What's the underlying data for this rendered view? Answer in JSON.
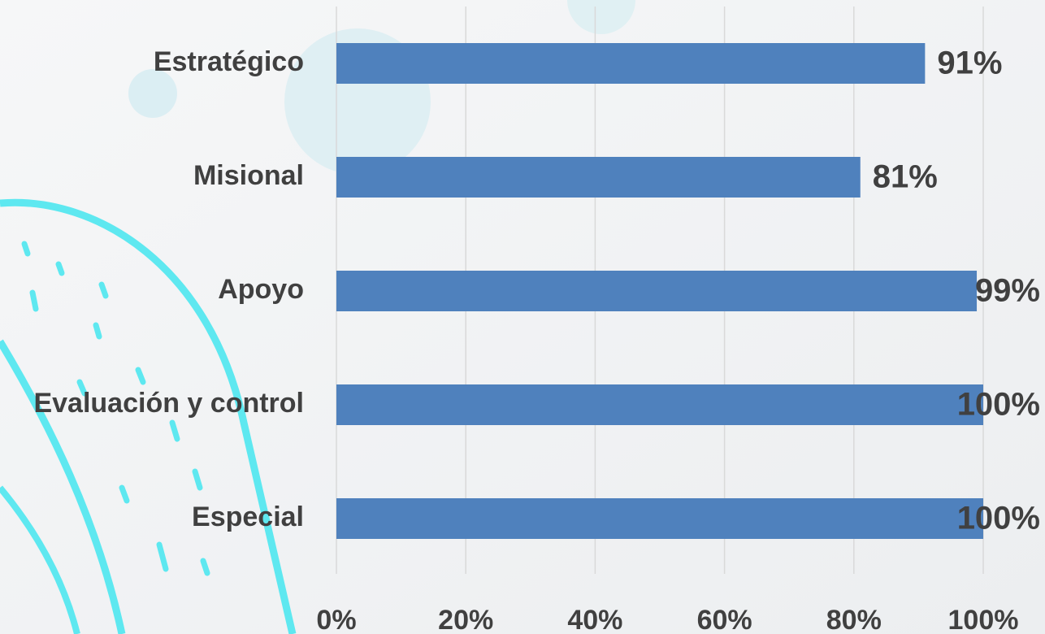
{
  "chart_data": {
    "type": "bar",
    "orientation": "horizontal",
    "categories": [
      "Estratégico",
      "Misional",
      "Apoyo",
      "Evaluación y control",
      "Especial"
    ],
    "values": [
      91,
      81,
      99,
      100,
      100
    ],
    "value_labels": [
      "91%",
      "81%",
      "99%",
      "100%",
      "100%"
    ],
    "color": "#4f81bd",
    "xlim": [
      0,
      100
    ],
    "xticks": [
      {
        "value": 0,
        "label": "0%"
      },
      {
        "value": 20,
        "label": "20%"
      },
      {
        "value": 40,
        "label": "40%"
      },
      {
        "value": 60,
        "label": "60%"
      },
      {
        "value": 80,
        "label": "80%"
      },
      {
        "value": 100,
        "label": "100%"
      }
    ],
    "grid": true
  }
}
